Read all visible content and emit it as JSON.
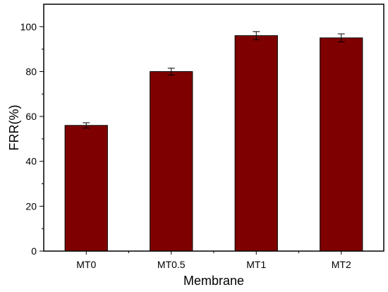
{
  "chart_data": {
    "type": "bar",
    "categories": [
      "MT0",
      "MT0.5",
      "MT1",
      "MT2"
    ],
    "values": [
      56,
      80,
      96,
      95
    ],
    "errors": [
      1.2,
      1.5,
      1.8,
      1.8
    ],
    "xlabel": "Membrane",
    "ylabel": "FRR(%)",
    "ylim": [
      0,
      110
    ],
    "yticks": [
      0,
      20,
      40,
      60,
      80,
      100
    ],
    "bar_color": "#7f0000",
    "grid": false
  }
}
